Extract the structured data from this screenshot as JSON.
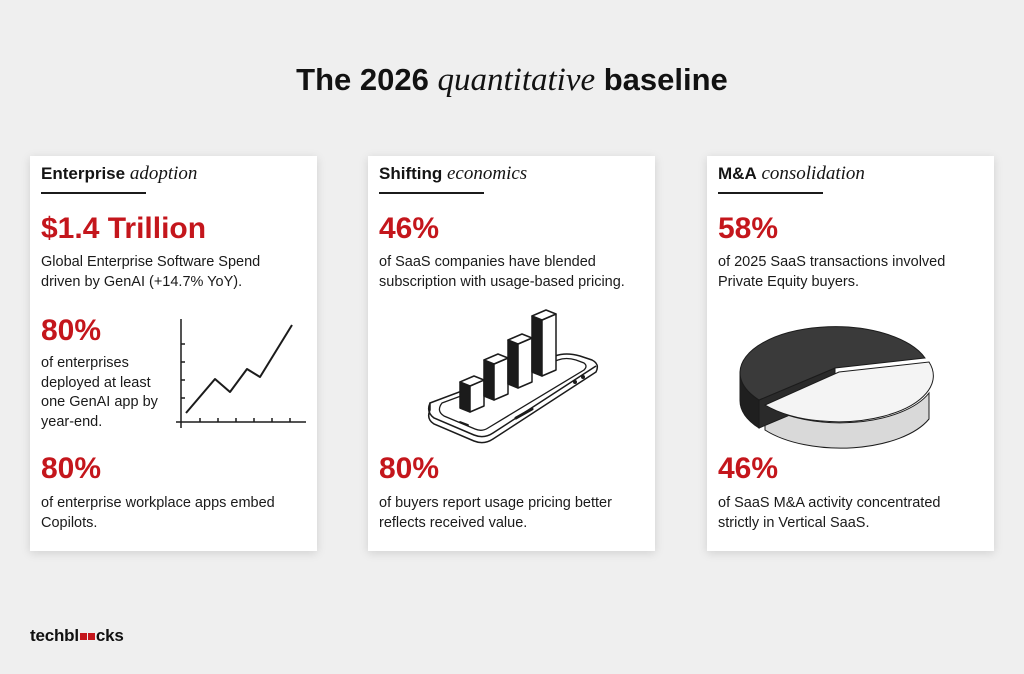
{
  "title": {
    "pre": "The 2026 ",
    "italic": "quantitative",
    "post": " baseline"
  },
  "cards": [
    {
      "heading_bold": "Enterprise",
      "heading_italic": "adoption",
      "stats": [
        {
          "value": "$1.4 Trillion",
          "text": "Global Enterprise Software Spend driven by GenAI (+14.7% YoY)."
        },
        {
          "value": "80%",
          "text": "of enterprises deployed at least one GenAI app by year-end."
        },
        {
          "value": "80%",
          "text": "of enterprise workplace apps embed Copilots."
        }
      ]
    },
    {
      "heading_bold": "Shifting",
      "heading_italic": "economics",
      "stats": [
        {
          "value": "46%",
          "text": "of SaaS companies have blended subscription with usage-based pricing."
        },
        {
          "value": "80%",
          "text": "of buyers report usage pricing better reflects received value."
        }
      ]
    },
    {
      "heading_bold": "M&A",
      "heading_italic": "consolidation",
      "stats": [
        {
          "value": "58%",
          "text": "of 2025 SaaS transactions involved Private Equity buyers."
        },
        {
          "value": "46%",
          "text": "of SaaS M&A activity concentrated strictly in Vertical SaaS."
        }
      ]
    }
  ],
  "icons": {
    "card1": "line-chart-icon",
    "card2": "phone-bar-chart-icon",
    "card3": "pie-chart-icon"
  },
  "colors": {
    "accent": "#c4161c",
    "background": "#efefef",
    "card": "#ffffff",
    "pie_dark": "#3a3a3a",
    "pie_light": "#f2f2f2"
  },
  "logo": {
    "pre": "techbl",
    "post": "cks"
  }
}
